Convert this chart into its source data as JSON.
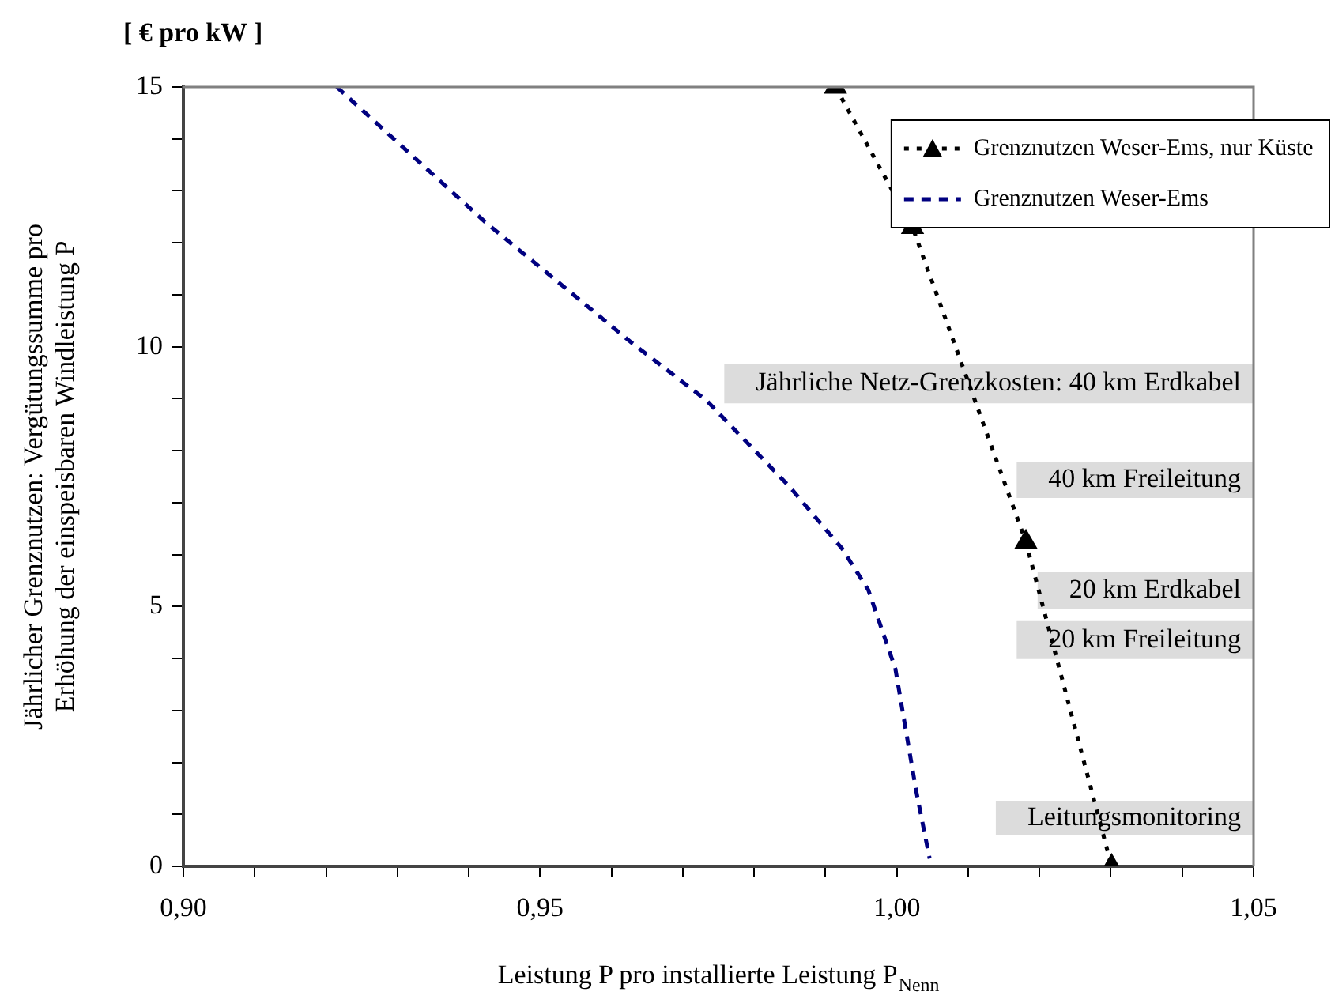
{
  "chart_data": {
    "type": "line",
    "xlabel": "Leistung P pro installierte Leistung P$_{Nenn}$",
    "ylabel": "Jährlicher Grenznutzen: Vergütungssumme pro Erhöhung der einspeisbaren Windleistung P",
    "annotations": [
      "[ € pro kW ]"
    ],
    "xlim": [
      0.9,
      1.05
    ],
    "xticks": [
      {
        "value": 0.9,
        "label": "0,90"
      },
      {
        "value": 0.91,
        "label": null
      },
      {
        "value": 0.92,
        "label": null
      },
      {
        "value": 0.93,
        "label": null
      },
      {
        "value": 0.94,
        "label": null
      },
      {
        "value": 0.95,
        "label": "0,95"
      },
      {
        "value": 0.96,
        "label": null
      },
      {
        "value": 0.97,
        "label": null
      },
      {
        "value": 0.98,
        "label": null
      },
      {
        "value": 0.99,
        "label": null
      },
      {
        "value": 1.0,
        "label": "1,00"
      },
      {
        "value": 1.01,
        "label": null
      },
      {
        "value": 1.02,
        "label": null
      },
      {
        "value": 1.03,
        "label": null
      },
      {
        "value": 1.04,
        "label": null
      },
      {
        "value": 1.05,
        "label": "1,05"
      }
    ],
    "ylim": [
      0,
      15
    ],
    "yticks": [
      0,
      {
        "value": 1,
        "label": null
      },
      {
        "value": 2,
        "label": null
      },
      {
        "value": 3,
        "label": null
      },
      {
        "value": 4,
        "label": null
      },
      5,
      {
        "value": 6,
        "label": null
      },
      {
        "value": 7,
        "label": null
      },
      {
        "value": 8,
        "label": null
      },
      {
        "value": 9,
        "label": null
      },
      10,
      {
        "value": 11,
        "label": null
      },
      {
        "value": 12,
        "label": null
      },
      {
        "value": 13,
        "label": null
      },
      {
        "value": 14,
        "label": null
      },
      15
    ],
    "grid": false,
    "legend": "top right",
    "series": [
      {
        "name": "Grenznutzen Weser-Ems, nur Küste",
        "color": "#000000",
        "marker": "triangle",
        "line_style": "dotted",
        "x": [
          0.9914,
          1.0022,
          1.0181,
          1.0301
        ],
        "values": [
          15,
          12.3,
          6.24,
          0
        ]
      },
      {
        "name": "Grenznutzen Weser-Ems",
        "color": "#000080",
        "marker": "none",
        "line_style": "dashed",
        "x": [
          0.9215,
          0.9423,
          0.9629,
          0.9733,
          0.985,
          0.9923,
          0.996,
          0.9998,
          1.0027,
          1.0046
        ],
        "values": [
          15,
          12.4,
          10.07,
          8.97,
          7.3,
          6.12,
          5.32,
          3.8,
          1.46,
          0.15
        ]
      }
    ],
    "bands": [
      {
        "axis": "y",
        "from": 8.91,
        "to": 9.67,
        "label": "Jährliche Netz-Grenzkosten: 40 km Erdkabel",
        "color": "#dcdcdc"
      },
      {
        "axis": "y",
        "from": 7.09,
        "to": 7.79,
        "label": "40 km Freileitung",
        "color": "#dcdcdc"
      },
      {
        "axis": "y",
        "from": 4.96,
        "to": 5.66,
        "label": "20 km Erdkabel",
        "color": "#dcdcdc"
      },
      {
        "axis": "y",
        "from": 3.99,
        "to": 4.72,
        "label": "20 km Freileitung",
        "color": "#dcdcdc"
      },
      {
        "axis": "y",
        "from": 0.61,
        "to": 1.25,
        "label": "Leitungsmonitoring",
        "color": "#dcdcdc"
      }
    ]
  }
}
